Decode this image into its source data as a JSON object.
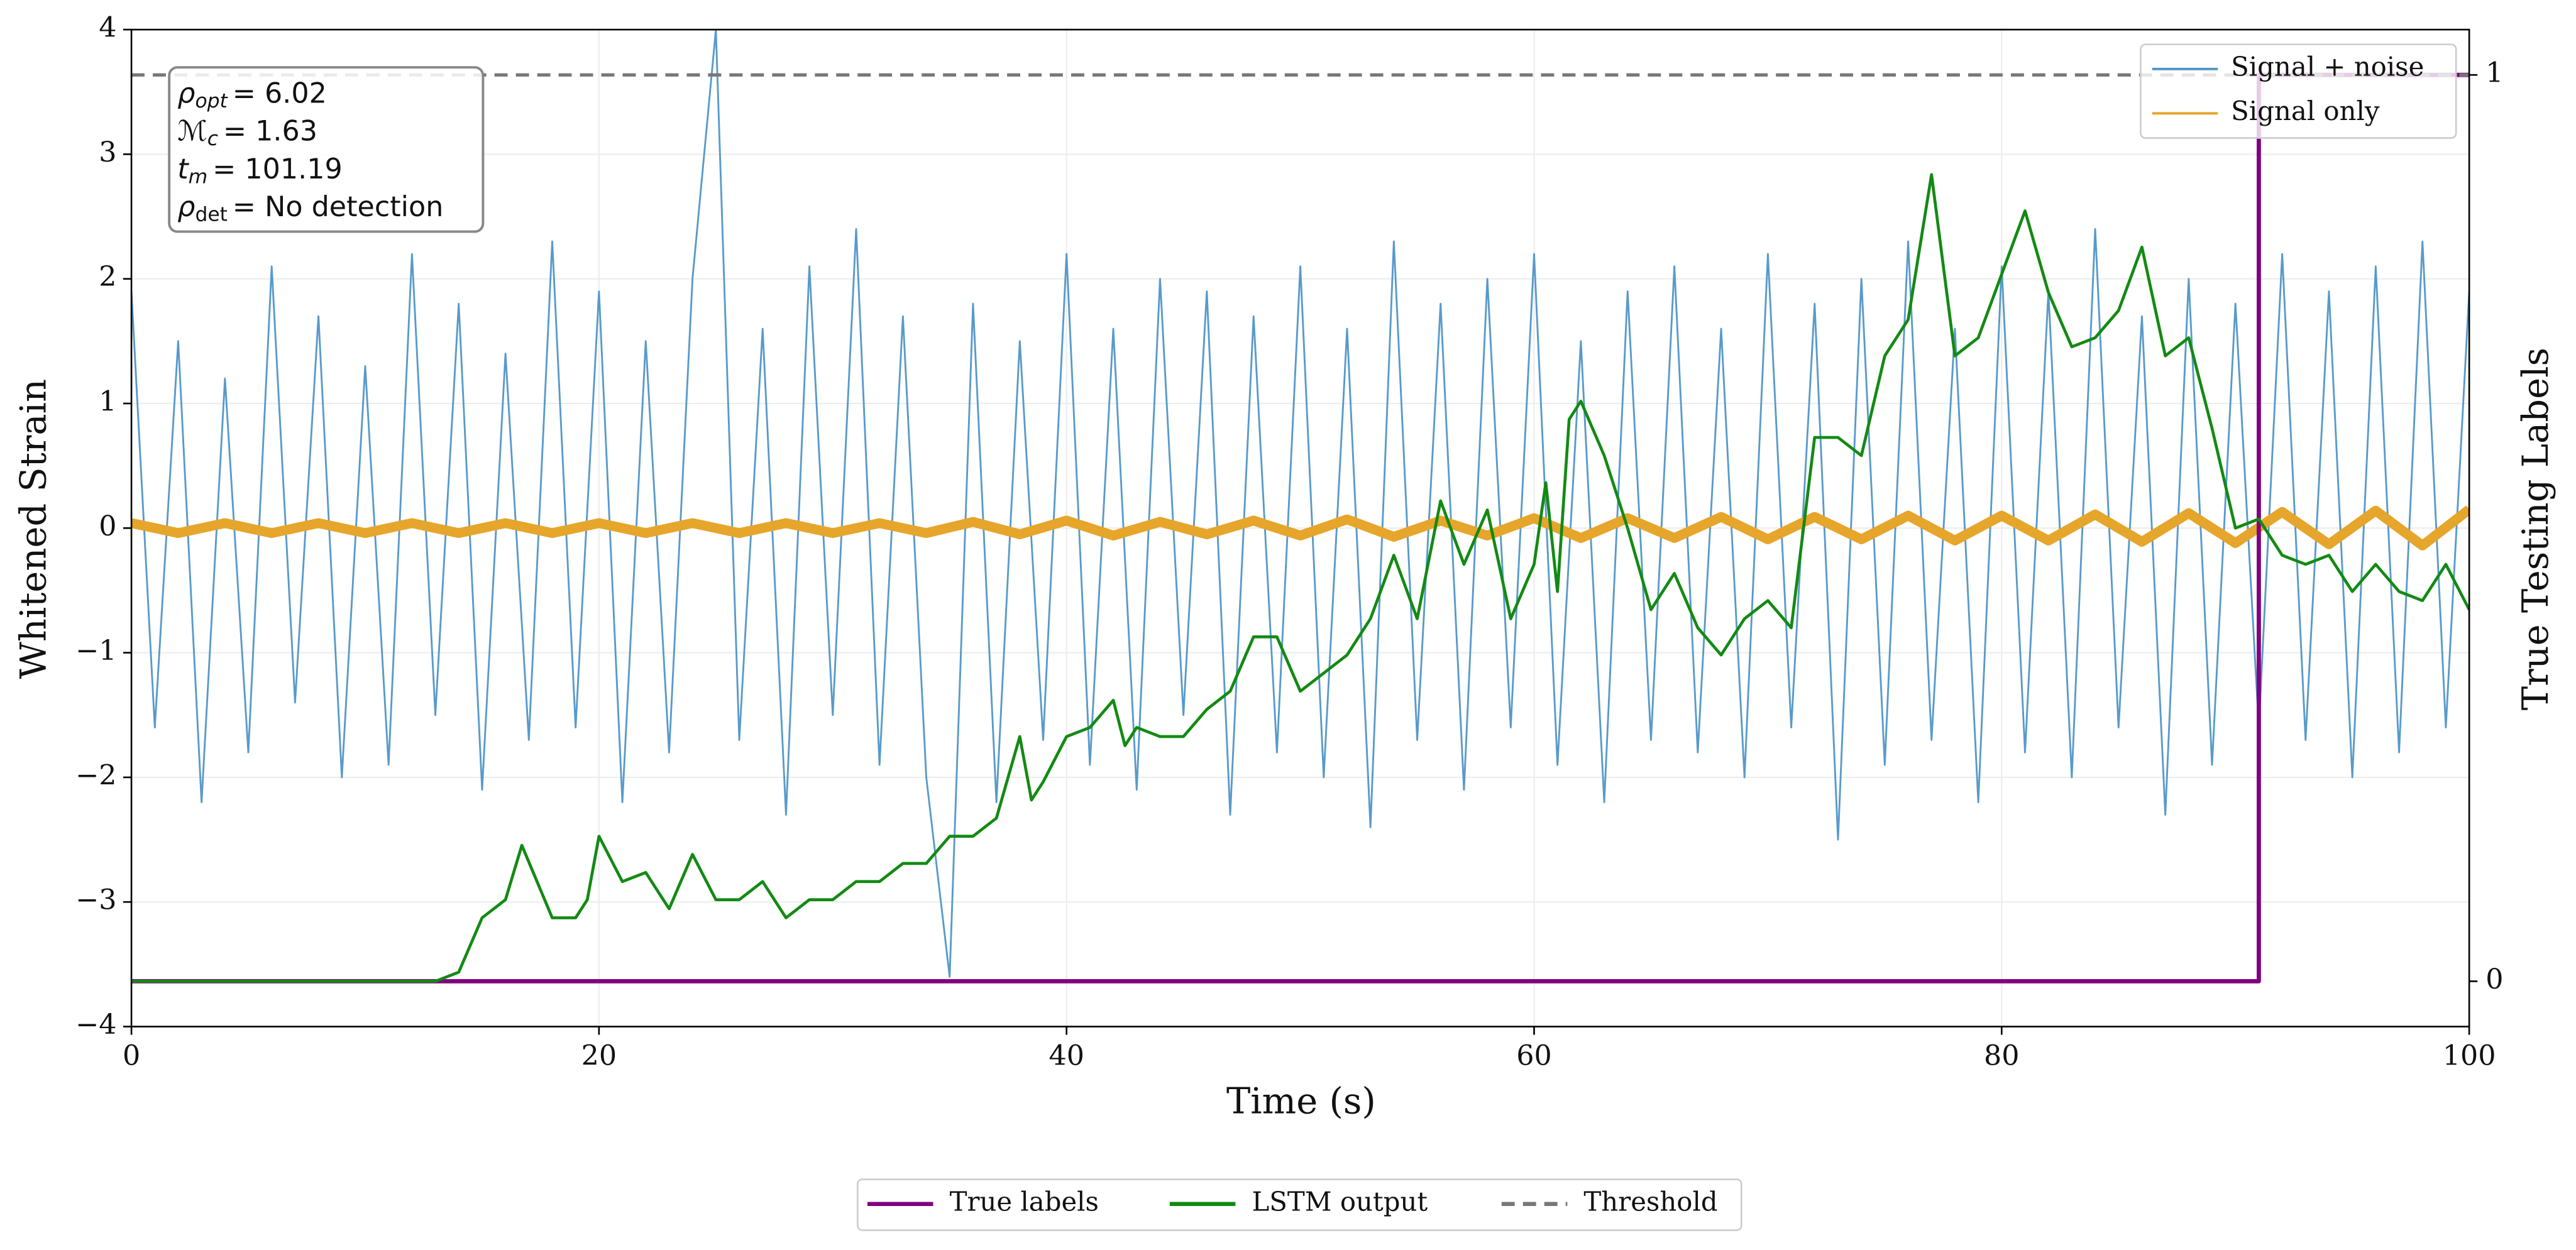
{
  "chart_data": {
    "type": "line",
    "xlabel": "Time (s)",
    "ylabel": "Whitened Strain",
    "y2label": "True Testing Labels",
    "xlim": [
      0,
      100
    ],
    "ylim": [
      -4,
      4
    ],
    "y2lim": [
      -0.05,
      1.05
    ],
    "xticks": [
      0,
      20,
      40,
      60,
      80,
      100
    ],
    "yticks": [
      {
        "value": -4,
        "label": "−4"
      },
      {
        "value": -3,
        "label": "−3"
      },
      {
        "value": -2,
        "label": "−2"
      },
      {
        "value": -1,
        "label": "−1"
      },
      0,
      1,
      2,
      3,
      4
    ],
    "y2ticks": [
      0,
      1
    ],
    "grid": true,
    "series": [
      {
        "name": "Signal + noise",
        "color": "#4f95c8",
        "axis": "y",
        "x": [
          0,
          1,
          2,
          3,
          4,
          5,
          6,
          7,
          8,
          9,
          10,
          11,
          12,
          13,
          14,
          15,
          16,
          17,
          18,
          19,
          20,
          21,
          22,
          23,
          24,
          25,
          26,
          27,
          28,
          29,
          30,
          31,
          32,
          33,
          34,
          35,
          36,
          37,
          38,
          39,
          40,
          41,
          42,
          43,
          44,
          45,
          46,
          47,
          48,
          49,
          50,
          51,
          52,
          53,
          54,
          55,
          56,
          57,
          58,
          59,
          60,
          61,
          62,
          63,
          64,
          65,
          66,
          67,
          68,
          69,
          70,
          71,
          72,
          73,
          74,
          75,
          76,
          77,
          78,
          79,
          80,
          81,
          82,
          83,
          84,
          85,
          86,
          87,
          88,
          89,
          90,
          91,
          92,
          93,
          94,
          95,
          96,
          97,
          98,
          99,
          100
        ],
        "values": [
          1.9,
          -1.6,
          1.5,
          -2.2,
          1.2,
          -1.8,
          2.1,
          -1.4,
          1.7,
          -2.0,
          1.3,
          -1.9,
          2.2,
          -1.5,
          1.8,
          -2.1,
          1.4,
          -1.7,
          2.3,
          -1.6,
          1.9,
          -2.2,
          1.5,
          -1.8,
          2.0,
          4.0,
          -1.7,
          1.6,
          -2.3,
          2.1,
          -1.5,
          2.4,
          -1.9,
          1.7,
          -2.0,
          -3.6,
          1.8,
          -2.2,
          1.5,
          -1.7,
          2.2,
          -1.9,
          1.6,
          -2.1,
          2.0,
          -1.5,
          1.9,
          -2.3,
          1.7,
          -1.8,
          2.1,
          -2.0,
          1.6,
          -2.4,
          2.3,
          -1.7,
          1.8,
          -2.1,
          2.0,
          -1.6,
          2.2,
          -1.9,
          1.5,
          -2.2,
          1.9,
          -1.7,
          2.1,
          -1.8,
          1.6,
          -2.0,
          2.2,
          -1.6,
          1.8,
          -2.5,
          2.0,
          -1.9,
          2.3,
          -1.7,
          1.6,
          -2.2,
          2.1,
          -1.8,
          1.9,
          -2.0,
          2.4,
          -1.6,
          1.7,
          -2.3,
          2.0,
          -1.9,
          1.8,
          -1.6,
          2.2,
          -1.7,
          1.9,
          -2.0,
          2.1,
          -1.8,
          2.3,
          -1.6,
          1.9
        ]
      },
      {
        "name": "Signal only",
        "color": "#e6a52b",
        "axis": "y",
        "x": [
          0,
          2,
          4,
          6,
          8,
          10,
          12,
          14,
          16,
          18,
          20,
          22,
          24,
          26,
          28,
          30,
          32,
          34,
          36,
          38,
          40,
          42,
          44,
          46,
          48,
          50,
          52,
          54,
          56,
          58,
          60,
          62,
          64,
          66,
          68,
          70,
          72,
          74,
          76,
          78,
          80,
          82,
          84,
          86,
          88,
          90,
          92,
          94,
          96,
          98,
          100
        ],
        "values": [
          0.04,
          -0.04,
          0.04,
          -0.04,
          0.04,
          -0.04,
          0.04,
          -0.04,
          0.04,
          -0.04,
          0.04,
          -0.04,
          0.04,
          -0.04,
          0.04,
          -0.04,
          0.04,
          -0.04,
          0.05,
          -0.05,
          0.06,
          -0.06,
          0.05,
          -0.05,
          0.06,
          -0.06,
          0.07,
          -0.07,
          0.06,
          -0.06,
          0.08,
          -0.08,
          0.08,
          -0.08,
          0.09,
          -0.09,
          0.09,
          -0.09,
          0.1,
          -0.1,
          0.1,
          -0.1,
          0.11,
          -0.11,
          0.12,
          -0.12,
          0.13,
          -0.13,
          0.14,
          -0.14,
          0.15
        ]
      },
      {
        "name": "True labels",
        "color": "#800080",
        "axis": "y2",
        "x": [
          0,
          91,
          91,
          100
        ],
        "values": [
          0,
          0,
          1,
          1
        ]
      },
      {
        "name": "LSTM output",
        "color": "#138a13",
        "axis": "y2",
        "x": [
          0,
          13,
          14,
          15,
          16,
          16.7,
          18,
          19,
          19.5,
          20,
          21,
          22,
          23,
          24,
          25,
          26,
          27,
          28,
          29,
          30,
          31,
          32,
          33,
          34,
          35,
          36,
          37,
          38,
          38.5,
          39,
          40,
          41,
          42,
          42.5,
          43,
          44,
          45,
          46,
          47,
          48,
          49,
          50,
          51,
          52,
          53,
          54,
          55,
          56,
          57,
          58,
          59,
          60,
          60.5,
          61,
          61.5,
          62,
          63,
          64,
          65,
          66,
          67,
          68,
          69,
          70,
          71,
          72,
          73,
          74,
          75,
          76,
          77,
          78,
          79,
          80,
          81,
          82,
          83,
          84,
          85,
          86,
          87,
          88,
          89,
          90,
          91,
          92,
          93,
          94,
          95,
          96,
          97,
          98,
          99,
          100
        ],
        "values": [
          0,
          0,
          0.01,
          0.07,
          0.09,
          0.15,
          0.07,
          0.07,
          0.09,
          0.16,
          0.11,
          0.12,
          0.08,
          0.14,
          0.09,
          0.09,
          0.11,
          0.07,
          0.09,
          0.09,
          0.11,
          0.11,
          0.13,
          0.13,
          0.16,
          0.16,
          0.18,
          0.27,
          0.2,
          0.22,
          0.27,
          0.28,
          0.31,
          0.26,
          0.28,
          0.27,
          0.27,
          0.3,
          0.32,
          0.38,
          0.38,
          0.32,
          0.34,
          0.36,
          0.4,
          0.47,
          0.4,
          0.53,
          0.46,
          0.52,
          0.4,
          0.46,
          0.55,
          0.43,
          0.62,
          0.64,
          0.58,
          0.5,
          0.41,
          0.45,
          0.39,
          0.36,
          0.4,
          0.42,
          0.39,
          0.6,
          0.6,
          0.58,
          0.69,
          0.73,
          0.89,
          0.69,
          0.71,
          0.78,
          0.85,
          0.76,
          0.7,
          0.71,
          0.74,
          0.81,
          0.69,
          0.71,
          0.61,
          0.5,
          0.51,
          0.47,
          0.46,
          0.47,
          0.43,
          0.46,
          0.43,
          0.42,
          0.46,
          0.41
        ]
      },
      {
        "name": "Threshold",
        "color": "#777777",
        "axis": "y2",
        "dashed": true,
        "x": [
          0,
          100
        ],
        "values": [
          1,
          1
        ]
      }
    ],
    "annotations": [
      {
        "symbol": "ρ",
        "sub": "opt",
        "text": "= 6.02"
      },
      {
        "symbol": "ℳ",
        "sub": "c",
        "text": "= 1.63"
      },
      {
        "symbol": "t",
        "sub": "m",
        "text": "= 101.19"
      },
      {
        "symbol": "ρ",
        "sub": "det",
        "text": "= No detection"
      }
    ]
  }
}
